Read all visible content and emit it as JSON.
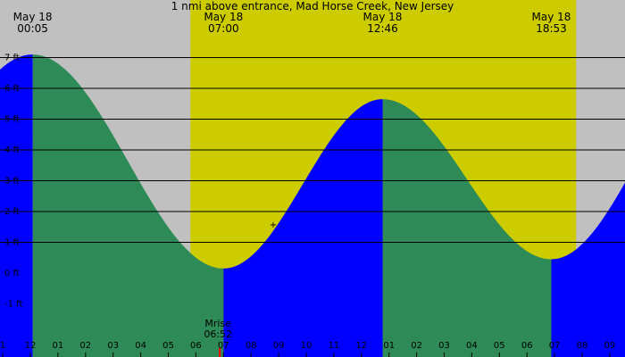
{
  "chart_data": {
    "type": "area",
    "title": "1 nmi above entrance, Mad Horse Creek, New Jersey",
    "units": "ft",
    "x_unit": "hours from midnight May 18",
    "x_range": [
      -1.3,
      33.3
    ],
    "ylim": [
      -2.2,
      8.8
    ],
    "y_ticks": [
      -1,
      0,
      1,
      2,
      3,
      4,
      5,
      6,
      7
    ],
    "y_tick_labels": [
      "-1 ft",
      "0 ft",
      "1 ft",
      "2 ft",
      "3 ft",
      "4 ft",
      "5 ft",
      "6 ft",
      "7 ft"
    ],
    "daylight": {
      "start": 5.8,
      "end": 19.78
    },
    "tide_extremes": [
      {
        "t": 0.083,
        "h": 7.1,
        "type": "high",
        "date_label": "May 18",
        "time_label": "00:05"
      },
      {
        "t": 7.0,
        "h": 0.15,
        "type": "low",
        "date_label": "May 18",
        "time_label": "07:00"
      },
      {
        "t": 12.767,
        "h": 5.65,
        "type": "high",
        "date_label": "May 18",
        "time_label": "12:46"
      },
      {
        "t": 18.883,
        "h": 0.45,
        "type": "low",
        "date_label": "May 18",
        "time_label": "18:53"
      },
      {
        "t": 25.2,
        "h": 7.0,
        "type": "high"
      }
    ],
    "hour_ticks": [
      {
        "t": -1,
        "label": "1"
      },
      {
        "t": 0,
        "label": "12"
      },
      {
        "t": 1,
        "label": "01"
      },
      {
        "t": 2,
        "label": "02"
      },
      {
        "t": 3,
        "label": "03"
      },
      {
        "t": 4,
        "label": "04"
      },
      {
        "t": 5,
        "label": "05"
      },
      {
        "t": 6,
        "label": "06"
      },
      {
        "t": 7,
        "label": "07"
      },
      {
        "t": 8,
        "label": "08"
      },
      {
        "t": 9,
        "label": "09"
      },
      {
        "t": 10,
        "label": "10"
      },
      {
        "t": 11,
        "label": "11"
      },
      {
        "t": 12,
        "label": "12"
      },
      {
        "t": 13,
        "label": "01"
      },
      {
        "t": 14,
        "label": "02"
      },
      {
        "t": 15,
        "label": "03"
      },
      {
        "t": 16,
        "label": "04"
      },
      {
        "t": 17,
        "label": "05"
      },
      {
        "t": 18,
        "label": "06"
      },
      {
        "t": 19,
        "label": "07"
      },
      {
        "t": 20,
        "label": "08"
      },
      {
        "t": 21,
        "label": "09"
      }
    ],
    "moonrise": {
      "t": 6.867,
      "label": "Mrise",
      "time_label": "06:52"
    },
    "marker": {
      "t": 8.8,
      "h": 1.6,
      "symbol": "+"
    },
    "colors": {
      "night": "#c0c0c0",
      "day": "#cccc00",
      "rising": "#0000ff",
      "falling": "#2e8b57",
      "moonrise_tick": "#ff0000"
    }
  }
}
